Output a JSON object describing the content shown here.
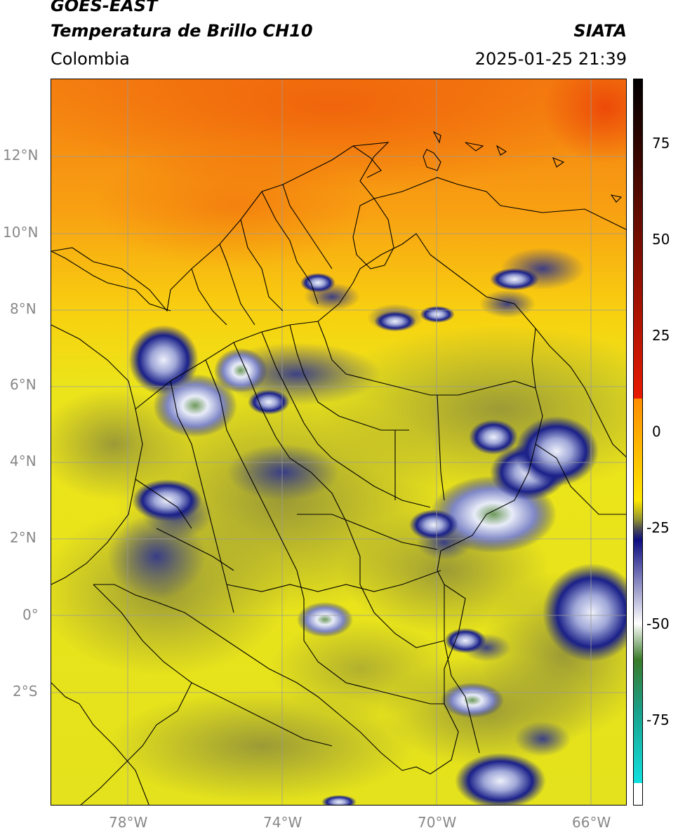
{
  "header": {
    "satellite": "GOES-EAST",
    "product": "Temperatura de Brillo CH10",
    "organization": "SIATA",
    "region": "Colombia",
    "timestamp": "2025-01-25 21:39"
  },
  "axes": {
    "lat_labels": [
      "12°N",
      "10°N",
      "8°N",
      "6°N",
      "4°N",
      "2°N",
      "0°",
      "2°S"
    ],
    "lon_labels": [
      "78°W",
      "74°W",
      "70°W",
      "66°W"
    ]
  },
  "colorbar": {
    "tick_labels": [
      "75",
      "50",
      "25",
      "0",
      "-25",
      "-50",
      "-75"
    ],
    "stops": [
      {
        "color": "#000000"
      },
      {
        "color": "#e81a00"
      },
      {
        "color": "#ff8c00"
      },
      {
        "color": "#ffe600"
      },
      {
        "color": "#9a9a2e"
      },
      {
        "color": "#4a4a55"
      },
      {
        "color": "#0d0d80"
      },
      {
        "color": "#ffffff"
      },
      {
        "color": "#3a7a2a"
      },
      {
        "color": "#1aa08a"
      },
      {
        "color": "#10e0e0"
      }
    ]
  },
  "map_colors": {
    "sea_north": "#f58a10",
    "warm_orange": "#f07010",
    "land_yellow": "#e8e41a",
    "olive": "#a8a83a",
    "cloud_blue": "#1a1f80",
    "cloud_white": "#e8ecf8",
    "cloud_green": "#6e9a5a",
    "borders": "#000000",
    "grid": "#9a9a9a"
  }
}
